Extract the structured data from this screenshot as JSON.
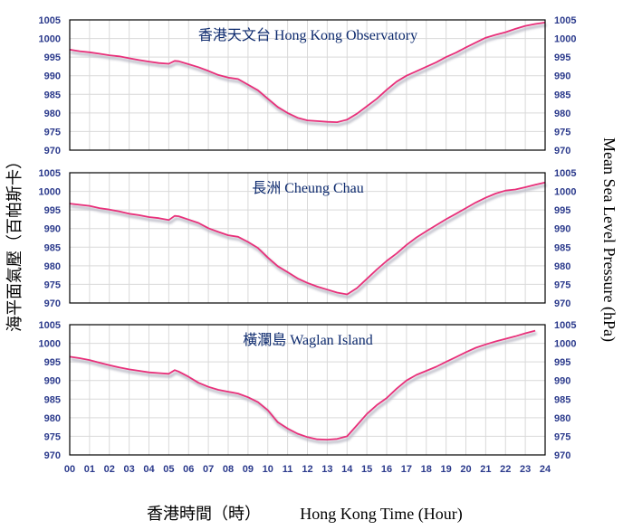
{
  "y_axis_left_label": "海平面氣壓（百帕斯卡）",
  "y_axis_right_label": "Mean Sea Level Pressure (hPa)",
  "x_axis_label_zh": "香港時間（時）",
  "x_axis_label_en": "Hong Kong Time (Hour)",
  "colors": {
    "line": "#e8307a",
    "shadow": "#b8b8c4",
    "tick_text": "#2b3a8c",
    "title_text": "#0d2a6e"
  },
  "x_ticks": [
    "00",
    "01",
    "02",
    "03",
    "04",
    "05",
    "06",
    "07",
    "08",
    "09",
    "10",
    "11",
    "12",
    "13",
    "14",
    "15",
    "16",
    "17",
    "18",
    "19",
    "20",
    "21",
    "22",
    "23",
    "24"
  ],
  "y_ticks": [
    "970",
    "975",
    "980",
    "985",
    "990",
    "995",
    "1000",
    "1005"
  ],
  "chart_data": [
    {
      "type": "line",
      "title": "香港天文台  Hong Kong Observatory",
      "xlim": [
        0,
        24
      ],
      "ylim": [
        970,
        1005
      ],
      "x": [
        0,
        0.5,
        1,
        1.5,
        2,
        2.5,
        3,
        3.5,
        4,
        4.5,
        5,
        5.3,
        5.5,
        6,
        6.5,
        7,
        7.5,
        8,
        8.5,
        9,
        9.5,
        10,
        10.5,
        11,
        11.5,
        12,
        12.5,
        13,
        13.5,
        14,
        14.5,
        15,
        15.5,
        16,
        16.5,
        17,
        17.5,
        18,
        18.5,
        19,
        19.5,
        20,
        20.5,
        21,
        21.5,
        22,
        22.5,
        23,
        23.5,
        24
      ],
      "y": [
        997,
        996.6,
        996.3,
        995.9,
        995.5,
        995.2,
        994.7,
        994.2,
        993.8,
        993.4,
        993.2,
        994.0,
        993.9,
        993.1,
        992.3,
        991.3,
        990.2,
        989.5,
        989.1,
        987.6,
        986.1,
        983.8,
        981.6,
        980.0,
        978.7,
        978.0,
        977.8,
        977.6,
        977.5,
        978.2,
        979.8,
        981.8,
        983.8,
        986.2,
        988.4,
        990.0,
        991.2,
        992.4,
        993.6,
        995.0,
        996.2,
        997.6,
        998.9,
        1000.2,
        1001.0,
        1001.7,
        1002.6,
        1003.4,
        1003.9,
        1004.3
      ]
    },
    {
      "type": "line",
      "title": "長洲  Cheung Chau",
      "xlim": [
        0,
        24
      ],
      "ylim": [
        970,
        1005
      ],
      "x": [
        0,
        0.5,
        1,
        1.5,
        2,
        2.5,
        3,
        3.5,
        4,
        4.5,
        5,
        5.3,
        5.5,
        6,
        6.5,
        7,
        7.5,
        8,
        8.5,
        9,
        9.5,
        10,
        10.5,
        11,
        11.5,
        12,
        12.5,
        13,
        13.5,
        14,
        14.5,
        15,
        15.5,
        16,
        16.5,
        17,
        17.5,
        18,
        18.5,
        19,
        19.5,
        20,
        20.5,
        21,
        21.5,
        22,
        22.5,
        23,
        23.5,
        24
      ],
      "y": [
        996.7,
        996.4,
        996.1,
        995.5,
        995.1,
        994.6,
        994.0,
        993.6,
        993.1,
        992.8,
        992.3,
        993.4,
        993.3,
        992.4,
        991.5,
        990.1,
        989.1,
        988.2,
        987.8,
        986.4,
        984.8,
        982.2,
        979.9,
        978.3,
        976.6,
        975.4,
        974.4,
        973.6,
        972.8,
        972.3,
        974.0,
        976.5,
        979.0,
        981.3,
        983.3,
        985.6,
        987.6,
        989.3,
        990.9,
        992.5,
        994.0,
        995.5,
        997.0,
        998.3,
        999.4,
        1000.2,
        1000.5,
        1001.1,
        1001.8,
        1002.4
      ]
    },
    {
      "type": "line",
      "title": "橫瀾島 Waglan Island",
      "xlim": [
        0,
        24
      ],
      "ylim": [
        970,
        1005
      ],
      "x": [
        0,
        0.5,
        1,
        1.5,
        2,
        2.5,
        3,
        3.5,
        4,
        4.5,
        5,
        5.3,
        5.5,
        6,
        6.5,
        7,
        7.5,
        8,
        8.5,
        9,
        9.5,
        10,
        10.5,
        11,
        11.5,
        12,
        12.5,
        13,
        13.5,
        14,
        14.5,
        15,
        15.5,
        16,
        16.5,
        17,
        17.5,
        18,
        18.5,
        19,
        19.5,
        20,
        20.5,
        21,
        21.5,
        22,
        22.5,
        23,
        23.5
      ],
      "y": [
        996.4,
        996.0,
        995.5,
        994.8,
        994.1,
        993.5,
        993.0,
        992.6,
        992.2,
        992.0,
        991.8,
        992.8,
        992.4,
        991.0,
        989.4,
        988.3,
        987.5,
        987.0,
        986.5,
        985.5,
        984.2,
        982.0,
        978.8,
        977.1,
        975.7,
        974.8,
        974.2,
        974.1,
        974.3,
        975.0,
        978.0,
        981.0,
        983.4,
        985.3,
        987.8,
        990.0,
        991.5,
        992.6,
        993.7,
        995.0,
        996.3,
        997.6,
        998.8,
        999.7,
        1000.5,
        1001.2,
        1001.9,
        1002.7,
        1003.4
      ]
    }
  ]
}
